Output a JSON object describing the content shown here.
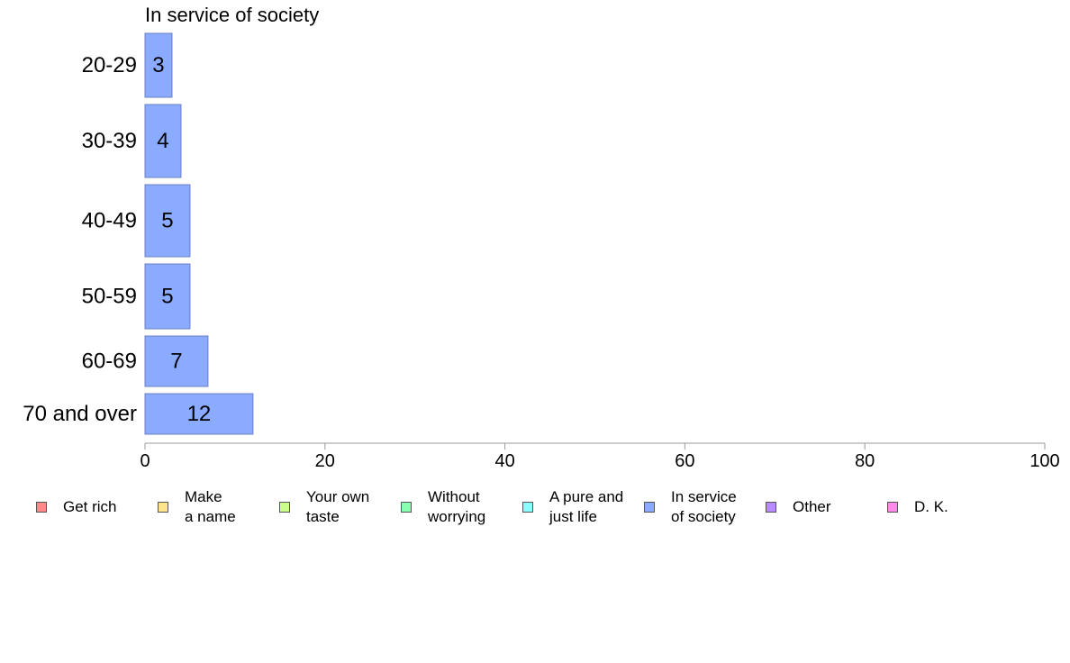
{
  "chart_data": {
    "type": "bar",
    "orientation": "horizontal",
    "title": "In service of society",
    "categories": [
      "20-29",
      "30-39",
      "40-49",
      "50-59",
      "60-69",
      "70 and over"
    ],
    "values": [
      3,
      4,
      5,
      5,
      7,
      12
    ],
    "data_labels": [
      "3",
      "4",
      "5",
      "5",
      "7",
      "12"
    ],
    "xlim": [
      0,
      100
    ],
    "x_ticks": [
      0,
      20,
      40,
      60,
      80,
      100
    ],
    "xlabel": "",
    "ylabel": "",
    "grid": false,
    "bar_color": "#8aabff",
    "bar_edge_color": "#6b7fc8",
    "legend_placement": "bottom"
  },
  "legend": [
    {
      "lines": [
        "Get rich",
        ""
      ],
      "color": "#ff8a8a"
    },
    {
      "lines": [
        "Make",
        "a name"
      ],
      "color": "#ffe58a"
    },
    {
      "lines": [
        "Your own",
        "taste"
      ],
      "color": "#ccff8a"
    },
    {
      "lines": [
        "Without",
        "worrying"
      ],
      "color": "#8affb0"
    },
    {
      "lines": [
        "A pure and",
        "just life"
      ],
      "color": "#8affff"
    },
    {
      "lines": [
        "In service",
        "of society"
      ],
      "color": "#8aabff"
    },
    {
      "lines": [
        "Other",
        ""
      ],
      "color": "#b98aff"
    },
    {
      "lines": [
        "D. K.",
        ""
      ],
      "color": "#ff8ae8"
    }
  ]
}
